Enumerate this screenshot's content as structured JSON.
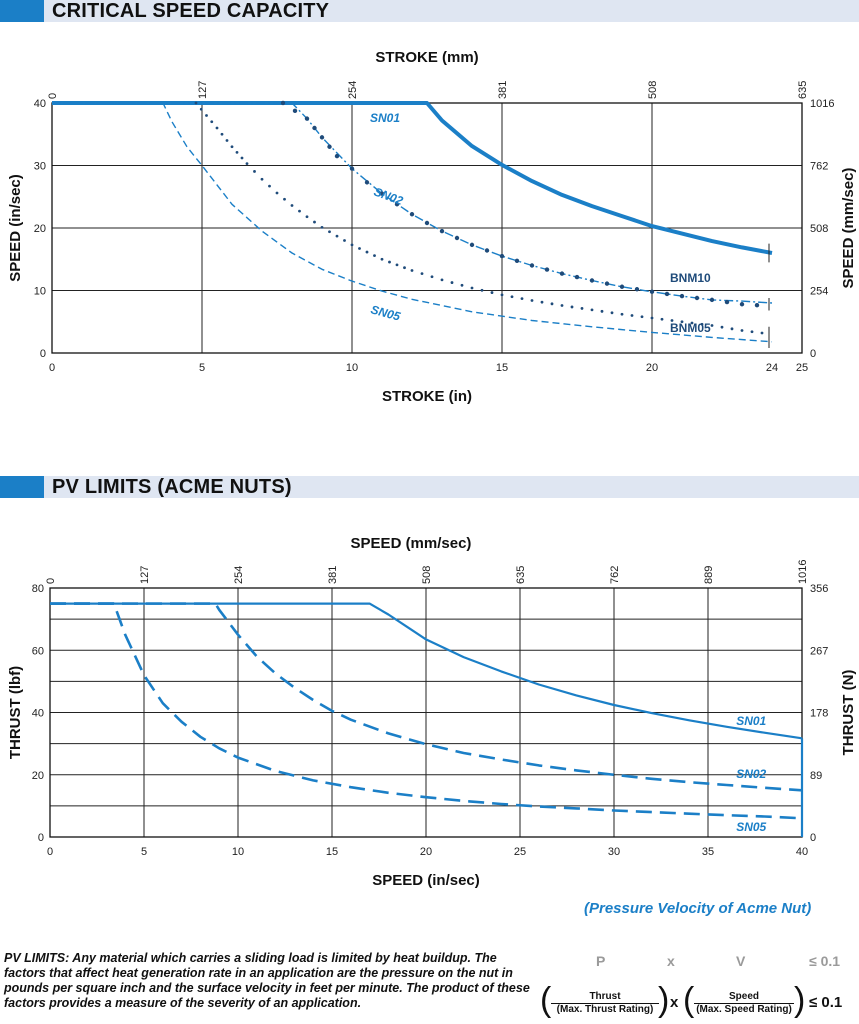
{
  "sections": {
    "critical_title": "CRITICAL SPEED CAPACITY",
    "pv_title": "PV LIMITS (ACME NUTS)"
  },
  "chart_data": [
    {
      "type": "line",
      "title": "CRITICAL SPEED CAPACITY",
      "xlabel": "STROKE (in)",
      "x2label": "STROKE (mm)",
      "ylabel": "SPEED (in/sec)",
      "y2label": "SPEED (mm/sec)",
      "xlim": [
        0,
        25
      ],
      "ylim": [
        0,
        40
      ],
      "x_ticks": [
        "0",
        "5",
        "10",
        "15",
        "20",
        "24",
        "25"
      ],
      "x2_ticks": [
        "0",
        "127",
        "254",
        "381",
        "508",
        "635"
      ],
      "y_ticks": [
        "0",
        "10",
        "20",
        "30",
        "40"
      ],
      "y2_ticks": [
        "0",
        "254",
        "508",
        "762",
        "1016"
      ],
      "grid": true,
      "series": [
        {
          "name": "SN01",
          "style": "solid",
          "color": "#1b7fc7",
          "x": [
            0,
            12.5,
            13,
            14,
            15,
            16,
            17,
            18,
            19,
            20,
            21,
            22,
            23,
            24
          ],
          "y": [
            40,
            40,
            37.2,
            33.1,
            30.1,
            27.5,
            25.3,
            23.5,
            21.9,
            20.3,
            19.1,
            17.9,
            16.9,
            16
          ]
        },
        {
          "name": "SN02",
          "style": "dash-dot",
          "color": "#1b7fc7",
          "x": [
            0,
            8,
            8.5,
            9,
            10,
            11,
            12,
            13,
            14,
            15,
            16,
            17,
            18,
            19,
            20,
            21,
            22,
            23,
            24
          ],
          "y": [
            40,
            40,
            37.5,
            34.5,
            29.5,
            25.5,
            22.2,
            19.5,
            17.3,
            15.5,
            14,
            12.7,
            11.6,
            10.6,
            9.8,
            9.1,
            8.5,
            8.3,
            8
          ]
        },
        {
          "name": "SN05",
          "style": "dash",
          "color": "#1b7fc7",
          "x": [
            0,
            3.7,
            4,
            4.5,
            5,
            6,
            7,
            8,
            9,
            10,
            11,
            12,
            14,
            16,
            18,
            20,
            22,
            24
          ],
          "y": [
            40,
            40,
            37,
            33,
            30,
            23.8,
            19.5,
            16,
            13.4,
            11.5,
            9.9,
            8.6,
            6.6,
            5.2,
            4.2,
            3.3,
            2.5,
            1.8
          ]
        },
        {
          "name": "BNM10",
          "style": "dots-large",
          "color": "#1f4b7a",
          "x": [
            7.7,
            8.5,
            9,
            9.5,
            10,
            10.5,
            11,
            11.5,
            12,
            12.5,
            13,
            14,
            15,
            16,
            17,
            18,
            19,
            20,
            21,
            22,
            23,
            24
          ],
          "y": [
            40,
            37.5,
            34.5,
            31.5,
            29.5,
            27.3,
            25.5,
            23.8,
            22.2,
            20.8,
            19.5,
            17.3,
            15.5,
            14,
            12.7,
            11.6,
            10.6,
            9.8,
            9.1,
            8.5,
            7.8,
            7.5
          ]
        },
        {
          "name": "BNM05",
          "style": "dots-small",
          "color": "#1f4b7a",
          "x": [
            4.8,
            5.5,
            6,
            6.5,
            7,
            7.5,
            8,
            8.5,
            9,
            10,
            11,
            12,
            13,
            14,
            15,
            16,
            17,
            18,
            19,
            20,
            21,
            22,
            23,
            24
          ],
          "y": [
            40,
            36,
            33,
            30.3,
            27.8,
            25.6,
            23.6,
            21.8,
            20.1,
            17.3,
            15,
            13.2,
            11.7,
            10.4,
            9.3,
            8.4,
            7.6,
            6.9,
            6.2,
            5.6,
            5,
            4.4,
            3.6,
            3
          ]
        }
      ],
      "labels": {
        "SN01": "SN01",
        "SN02": "SN02",
        "SN05": "SN05",
        "BNM10": "BNM10",
        "BNM05": "BNM05"
      }
    },
    {
      "type": "line",
      "title": "PV LIMITS (ACME NUTS)",
      "xlabel": "SPEED (in/sec)",
      "x2label": "SPEED (mm/sec)",
      "ylabel": "THRUST (lbf)",
      "y2label": "THRUST (N)",
      "xlim": [
        0,
        40
      ],
      "ylim": [
        0,
        80
      ],
      "x_ticks": [
        "0",
        "5",
        "10",
        "15",
        "20",
        "25",
        "30",
        "35",
        "40"
      ],
      "x2_ticks": [
        "0",
        "127",
        "254",
        "381",
        "508",
        "635",
        "762",
        "889",
        "1016"
      ],
      "y_ticks": [
        "0",
        "20",
        "40",
        "60",
        "80"
      ],
      "y2_ticks": [
        "0",
        "89",
        "178",
        "267",
        "356"
      ],
      "grid": true,
      "series": [
        {
          "name": "SN01",
          "style": "solid",
          "color": "#1b7fc7",
          "x": [
            0,
            17,
            18,
            19,
            20,
            22,
            24,
            26,
            28,
            30,
            32,
            34,
            36,
            38,
            40
          ],
          "y": [
            75,
            75,
            71.5,
            67.5,
            63.5,
            57.8,
            53.2,
            49,
            45.5,
            42.4,
            39.8,
            37.5,
            35.4,
            33.5,
            31.7
          ]
        },
        {
          "name": "SN02",
          "style": "long-dash",
          "color": "#1b7fc7",
          "x": [
            0,
            8.8,
            9,
            10,
            11,
            12,
            13,
            14,
            15,
            16,
            18,
            20,
            22,
            24,
            26,
            28,
            30,
            32,
            34,
            36,
            38,
            40
          ],
          "y": [
            75,
            75,
            73,
            65,
            58,
            52.5,
            48,
            44,
            40.5,
            37.7,
            33.3,
            29.8,
            27,
            24.9,
            23,
            21.4,
            20,
            18.7,
            17.6,
            16.7,
            15.8,
            15
          ]
        },
        {
          "name": "SN05",
          "style": "long-dash",
          "color": "#1b7fc7",
          "x": [
            0,
            3.4,
            4,
            5,
            6,
            7,
            8,
            9,
            10,
            12,
            14,
            16,
            18,
            20,
            22,
            24,
            26,
            28,
            30,
            32,
            34,
            36,
            38,
            40
          ],
          "y": [
            75,
            75,
            65,
            52,
            43,
            37,
            32.2,
            28.5,
            25.5,
            21.2,
            18.2,
            16,
            14.2,
            12.8,
            11.6,
            10.6,
            9.8,
            9.2,
            8.5,
            8,
            7.5,
            7,
            6.6,
            6
          ]
        }
      ],
      "labels": {
        "SN01": "SN01",
        "SN02": "SN02",
        "SN05": "SN05"
      }
    }
  ],
  "pv": {
    "subtitle": "(Pressure Velocity of Acme Nut)",
    "note_label": "PV LIMITS:",
    "note": "Any material which carries a sliding load is limited by heat buildup. The factors that affect heat generation rate in an application are the pressure on the nut in pounds per square inch and the surface velocity in feet per minute. The product of these factors provides a measure of the severity of an application.",
    "formula_p": "P",
    "formula_x": "x",
    "formula_v": "V",
    "formula_le": "≤ 0.1",
    "frac1_num": "Thrust",
    "frac1_den": "(Max. Thrust Rating)",
    "frac2_num": "Speed",
    "frac2_den": "(Max. Speed Rating)",
    "times": "x",
    "le": "≤ 0.1"
  }
}
